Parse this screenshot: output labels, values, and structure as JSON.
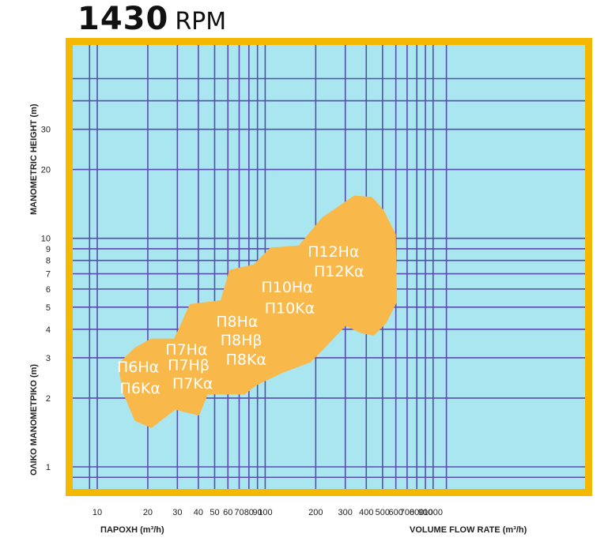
{
  "title": {
    "main": "1430",
    "unit": "RPM"
  },
  "colors": {
    "frame": "#f5b800",
    "plot_background": "#a9e6ef",
    "grid": "#5a4bb0",
    "region_fill": "#f8b84a",
    "region_text": "#ffffff"
  },
  "chart_data": {
    "type": "area",
    "title": "1430 RPM",
    "scale": "log-log",
    "grid": true,
    "xlim": [
      8,
      1400
    ],
    "ylim": [
      0.8,
      60
    ],
    "x_ticks": [
      10,
      20,
      30,
      40,
      50,
      60,
      70,
      80,
      90,
      100,
      200,
      300,
      400,
      500,
      600,
      700,
      800,
      900,
      1000
    ],
    "x_tick_labels": [
      "10",
      "20",
      "30",
      "40",
      "50",
      "60",
      "70",
      "80",
      "90",
      "100",
      "200",
      "300",
      "400",
      "500",
      "600",
      "700",
      "800",
      "900",
      "1000"
    ],
    "y_ticks": [
      1,
      2,
      3,
      4,
      5,
      6,
      7,
      8,
      9,
      10,
      20,
      30
    ],
    "y_tick_labels": [
      "1",
      "2",
      "3",
      "4",
      "5",
      "6",
      "7",
      "8",
      "9",
      "10",
      "20",
      "30"
    ],
    "xlabel_left": "ΠΑΡΟΧΗ (m³/h)",
    "xlabel_right": "VOLUME FLOW RATE (m³/h)",
    "ylabel_top": "MANOMETRIC HEIGHT (m)",
    "ylabel_bottom": "ΟΛΙΚΟ ΜΑΝΟΜΕΤΡΙΚΟ (m)",
    "region": {
      "outline": [
        [
          17,
          3.3
        ],
        [
          21,
          3.6
        ],
        [
          29,
          3.6
        ],
        [
          36,
          5.1
        ],
        [
          55,
          5.3
        ],
        [
          62,
          7.2
        ],
        [
          86,
          7.6
        ],
        [
          108,
          9.0
        ],
        [
          160,
          9.2
        ],
        [
          220,
          12.2
        ],
        [
          340,
          15.2
        ],
        [
          430,
          15.0
        ],
        [
          500,
          13.2
        ],
        [
          590,
          10.4
        ],
        [
          600,
          5.3
        ],
        [
          520,
          4.3
        ],
        [
          440,
          3.8
        ],
        [
          370,
          3.9
        ],
        [
          300,
          4.2
        ],
        [
          220,
          3.3
        ],
        [
          185,
          2.9
        ],
        [
          125,
          2.6
        ],
        [
          88,
          2.3
        ],
        [
          75,
          2.1
        ],
        [
          60,
          2.1
        ],
        [
          45,
          2.1
        ],
        [
          40,
          1.7
        ],
        [
          29,
          1.8
        ],
        [
          21,
          1.5
        ],
        [
          17,
          1.6
        ],
        [
          14.5,
          2.1
        ],
        [
          13.5,
          2.8
        ],
        [
          17,
          3.3
        ]
      ]
    },
    "series": [
      {
        "name": "Π6Hα",
        "x": 17.5,
        "y": 2.6
      },
      {
        "name": "Π6Kα",
        "x": 18,
        "y": 2.1
      },
      {
        "name": "Π7Hα",
        "x": 34,
        "y": 3.1
      },
      {
        "name": "Π7Hβ",
        "x": 35,
        "y": 2.65
      },
      {
        "name": "Π7Kα",
        "x": 37,
        "y": 2.2
      },
      {
        "name": "Π8Hα",
        "x": 68,
        "y": 4.1
      },
      {
        "name": "Π8Hβ",
        "x": 72,
        "y": 3.4
      },
      {
        "name": "Π8Kα",
        "x": 77,
        "y": 2.8
      },
      {
        "name": "Π10Hα",
        "x": 135,
        "y": 5.8
      },
      {
        "name": "Π10Kα",
        "x": 140,
        "y": 4.7
      },
      {
        "name": "Π12Hα",
        "x": 255,
        "y": 8.3
      },
      {
        "name": "Π12Kα",
        "x": 275,
        "y": 6.8
      }
    ]
  }
}
